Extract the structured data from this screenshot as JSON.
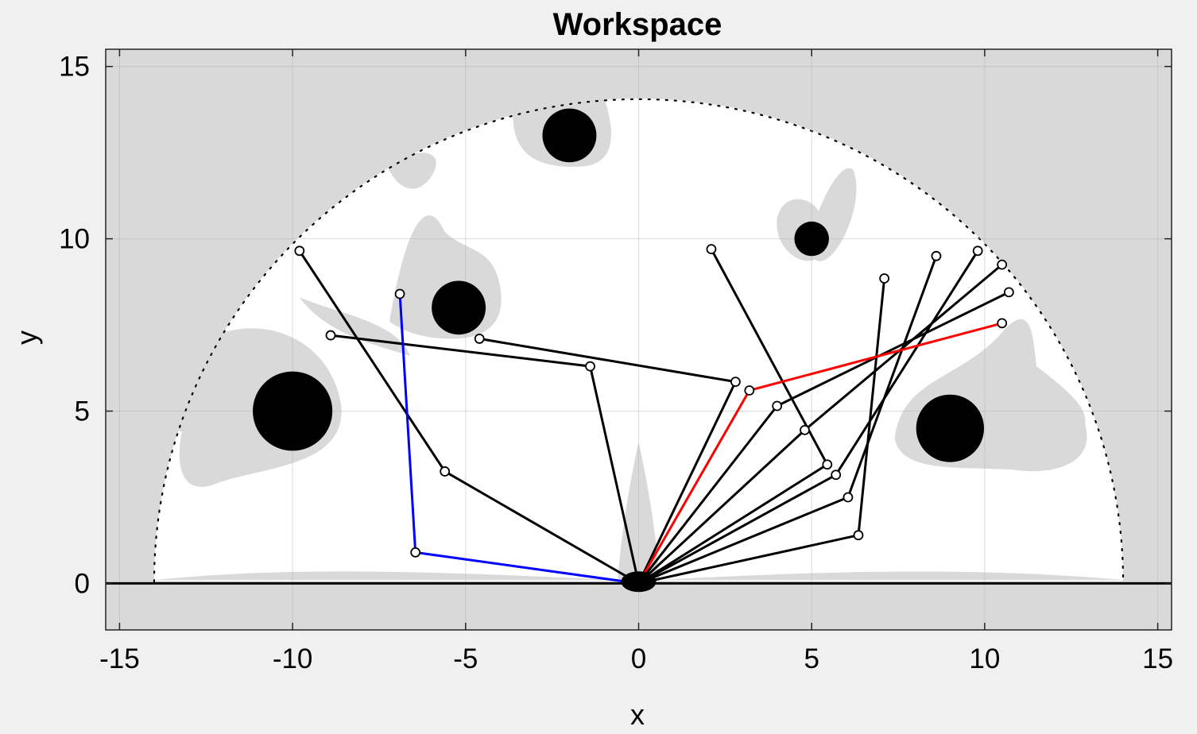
{
  "chart_data": {
    "type": "line",
    "title": "Workspace",
    "xlabel": "x",
    "ylabel": "y",
    "xlim": [
      -15.4,
      15.4
    ],
    "ylim": [
      -1.35,
      15.5
    ],
    "xticks": [
      -15,
      -10,
      -5,
      0,
      5,
      10,
      15
    ],
    "yticks": [
      0,
      5,
      10,
      15
    ],
    "xtick_labels": [
      "-15",
      "-10",
      "-5",
      "0",
      "5",
      "10",
      "15"
    ],
    "ytick_labels": [
      "0",
      "5",
      "10",
      "15"
    ],
    "grid": true,
    "background_color": "#d9d9d9",
    "workspace_color": "#ffffff",
    "reach_radius": 14,
    "obstacles": [
      {
        "cx": -10,
        "cy": 5,
        "r": 1.15
      },
      {
        "cx": -5.2,
        "cy": 8,
        "r": 0.78
      },
      {
        "cx": -2,
        "cy": 13,
        "r": 0.78
      },
      {
        "cx": 5,
        "cy": 10,
        "r": 0.5
      },
      {
        "cx": 9,
        "cy": 4.5,
        "r": 0.98
      }
    ],
    "arms": [
      {
        "color": "#0000ff",
        "points": [
          [
            0,
            0
          ],
          [
            -6.45,
            0.9
          ],
          [
            -6.9,
            8.4
          ]
        ]
      },
      {
        "color": "#ff0000",
        "points": [
          [
            0,
            0
          ],
          [
            3.2,
            5.6
          ],
          [
            10.5,
            7.55
          ]
        ]
      },
      {
        "color": "#000000",
        "points": [
          [
            0,
            0
          ],
          [
            -5.6,
            3.25
          ],
          [
            -9.8,
            9.65
          ]
        ]
      },
      {
        "color": "#000000",
        "points": [
          [
            0,
            0
          ],
          [
            -1.4,
            6.3
          ],
          [
            -8.9,
            7.2
          ]
        ]
      },
      {
        "color": "#000000",
        "points": [
          [
            0,
            0
          ],
          [
            2.8,
            5.85
          ],
          [
            -4.6,
            7.1
          ]
        ]
      },
      {
        "color": "#000000",
        "points": [
          [
            0,
            0
          ],
          [
            5.45,
            3.45
          ],
          [
            2.1,
            9.7
          ]
        ]
      },
      {
        "color": "#000000",
        "points": [
          [
            0,
            0
          ],
          [
            6.35,
            1.4
          ],
          [
            7.1,
            8.85
          ]
        ]
      },
      {
        "color": "#000000",
        "points": [
          [
            0,
            0
          ],
          [
            6.05,
            2.5
          ],
          [
            8.6,
            9.5
          ]
        ]
      },
      {
        "color": "#000000",
        "points": [
          [
            0,
            0
          ],
          [
            5.7,
            3.15
          ],
          [
            9.8,
            9.65
          ]
        ]
      },
      {
        "color": "#000000",
        "points": [
          [
            0,
            0
          ],
          [
            4.8,
            4.45
          ],
          [
            10.5,
            9.25
          ]
        ]
      },
      {
        "color": "#000000",
        "points": [
          [
            0,
            0
          ],
          [
            4,
            5.15
          ],
          [
            10.7,
            8.45
          ]
        ]
      }
    ]
  }
}
